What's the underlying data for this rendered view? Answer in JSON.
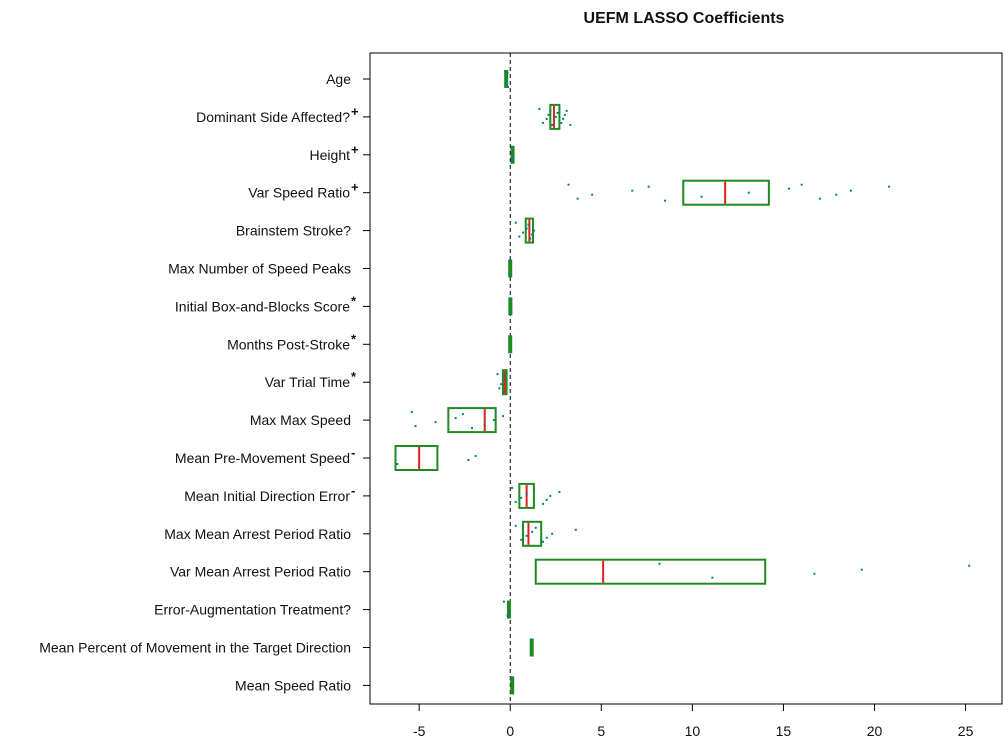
{
  "chart_data": {
    "type": "boxplot",
    "orientation": "horizontal",
    "title": "UEFM LASSO Coefficients",
    "xlabel": "",
    "ylabel": "",
    "xlim": [
      -7.7,
      27.0
    ],
    "x_ticks": [
      -5,
      0,
      5,
      10,
      15,
      20,
      25
    ],
    "x_tick_labels": [
      "-5",
      "0",
      "5",
      "10",
      "15",
      "20",
      "25"
    ],
    "reference_line": {
      "x": 0,
      "style": "dashed"
    },
    "colors": {
      "box": "#1f8a1f",
      "median": "#e02020",
      "points": "#00827f",
      "axis": "#000000",
      "refline": "#000000"
    },
    "grid": false,
    "categories": [
      {
        "label": "Age",
        "marker": "",
        "q1": -0.25,
        "median": -0.2,
        "q3": -0.15,
        "points": [
          -0.28,
          -0.24,
          -0.2,
          -0.18,
          -0.15,
          -0.12
        ]
      },
      {
        "label": "Dominant Side Affected?",
        "marker": "+",
        "q1": 2.2,
        "median": 2.4,
        "q3": 2.7,
        "points": [
          1.6,
          1.8,
          2.0,
          2.1,
          2.2,
          2.3,
          2.4,
          2.5,
          2.6,
          2.7,
          2.8,
          2.9,
          3.0,
          3.1,
          3.3
        ]
      },
      {
        "label": "Height",
        "marker": "+",
        "q1": 0.1,
        "median": 0.12,
        "q3": 0.15,
        "points": [
          0.1,
          0.12,
          0.15
        ]
      },
      {
        "label": "Var Speed Ratio",
        "marker": "+",
        "q1": 9.5,
        "median": 11.8,
        "q3": 14.2,
        "points": [
          3.2,
          3.7,
          4.5,
          6.7,
          7.6,
          8.5,
          10.5,
          13.1,
          15.3,
          16.0,
          17.0,
          17.9,
          18.7,
          20.8
        ]
      },
      {
        "label": "Brainstem Stroke?",
        "marker": "",
        "q1": 0.85,
        "median": 1.05,
        "q3": 1.25,
        "points": [
          0.3,
          0.5,
          0.7,
          0.9,
          1.0,
          1.1,
          1.2,
          1.3
        ]
      },
      {
        "label": "Max Number of Speed Peaks",
        "marker": "",
        "q1": -0.03,
        "median": -0.02,
        "q3": -0.01,
        "points": [
          -0.03,
          -0.02
        ]
      },
      {
        "label": "Initial Box-and-Blocks Score",
        "marker": "*",
        "q1": -0.02,
        "median": -0.01,
        "q3": 0.0,
        "points": [
          -0.02,
          -0.01
        ]
      },
      {
        "label": "Months Post-Stroke",
        "marker": "*",
        "q1": -0.03,
        "median": -0.02,
        "q3": -0.01,
        "points": [
          -0.02
        ]
      },
      {
        "label": "Var Trial Time",
        "marker": "*",
        "q1": -0.4,
        "median": -0.3,
        "q3": -0.2,
        "points": [
          -0.7,
          -0.6,
          -0.5,
          -0.4,
          -0.3
        ]
      },
      {
        "label": "Max Max Speed",
        "marker": "",
        "q1": -3.4,
        "median": -1.4,
        "q3": -0.8,
        "points": [
          -5.4,
          -5.2,
          -4.1,
          -3.0,
          -2.6,
          -2.1,
          -1.4,
          -0.9,
          -0.4
        ]
      },
      {
        "label": "Mean Pre-Movement Speed",
        "marker": "-",
        "q1": -6.3,
        "median": -5.0,
        "q3": -4.0,
        "points": [
          -6.3,
          -6.2,
          -2.3,
          -1.9
        ]
      },
      {
        "label": "Mean Initial Direction Error",
        "marker": "-",
        "q1": 0.5,
        "median": 0.9,
        "q3": 1.3,
        "points": [
          0.1,
          0.3,
          0.6,
          0.9,
          1.3,
          1.8,
          2.0,
          2.2,
          2.7
        ]
      },
      {
        "label": "Max Mean Arrest Period Ratio",
        "marker": "",
        "q1": 0.7,
        "median": 1.0,
        "q3": 1.7,
        "points": [
          0.3,
          0.6,
          0.9,
          1.2,
          1.4,
          1.8,
          2.0,
          2.3,
          3.6
        ]
      },
      {
        "label": "Var Mean Arrest Period Ratio",
        "marker": "",
        "q1": 1.4,
        "median": 5.1,
        "q3": 14.0,
        "points": [
          8.2,
          11.1,
          16.7,
          19.3,
          25.2
        ]
      },
      {
        "label": "Error-Augmentation Treatment?",
        "marker": "",
        "q1": -0.1,
        "median": -0.05,
        "q3": -0.02,
        "points": [
          -0.35,
          -0.15,
          -0.05
        ]
      },
      {
        "label": "Mean Percent of Movement in the Target Direction",
        "marker": "",
        "q1": 1.15,
        "median": 1.18,
        "q3": 1.2,
        "points": [
          1.18
        ]
      },
      {
        "label": "Mean Speed Ratio",
        "marker": "",
        "q1": 0.08,
        "median": 0.1,
        "q3": 0.12,
        "points": [
          0.1
        ]
      }
    ]
  }
}
